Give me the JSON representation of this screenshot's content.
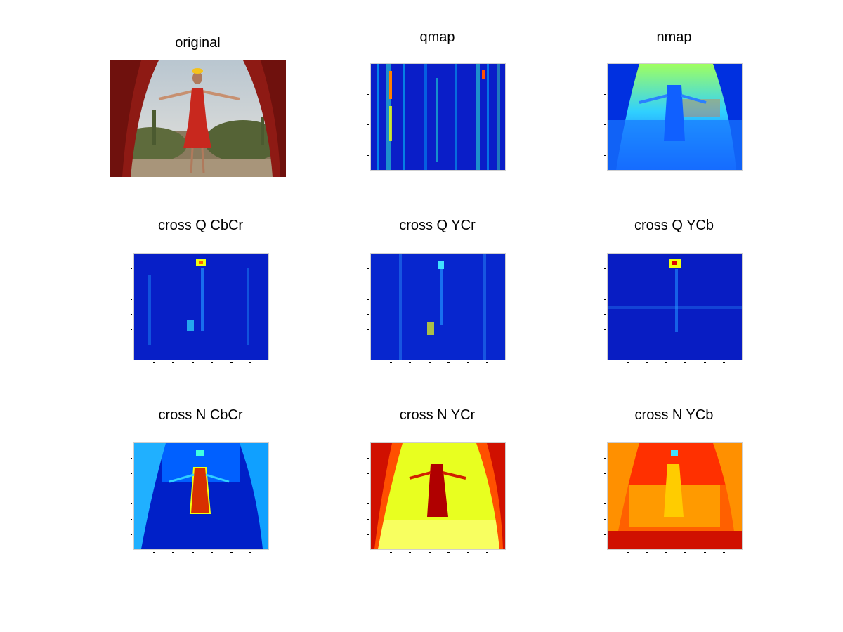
{
  "figure": {
    "panels": [
      {
        "id": "original",
        "title": "original"
      },
      {
        "id": "qmap",
        "title": "qmap"
      },
      {
        "id": "nmap",
        "title": "nmap"
      },
      {
        "id": "cross-q-cbcr",
        "title": "cross Q CbCr"
      },
      {
        "id": "cross-q-ycr",
        "title": "cross Q YCr"
      },
      {
        "id": "cross-q-ycb",
        "title": "cross Q YCb"
      },
      {
        "id": "cross-n-cbcr",
        "title": "cross N CbCr"
      },
      {
        "id": "cross-n-ycr",
        "title": "cross N YCr"
      },
      {
        "id": "cross-n-ycb",
        "title": "cross N YCb"
      }
    ]
  },
  "colors": {
    "background": "#ffffff",
    "jet_dark_blue": "#00008f",
    "jet_blue": "#0020ff",
    "jet_cyan": "#00e0ff",
    "jet_yellow": "#f0ff10",
    "jet_orange": "#ff8000",
    "jet_red": "#c00000",
    "curtain_red": "#8e1a14",
    "dress_red": "#c8281e",
    "sky": "#d8dce0",
    "desert": "#9a8a70"
  }
}
